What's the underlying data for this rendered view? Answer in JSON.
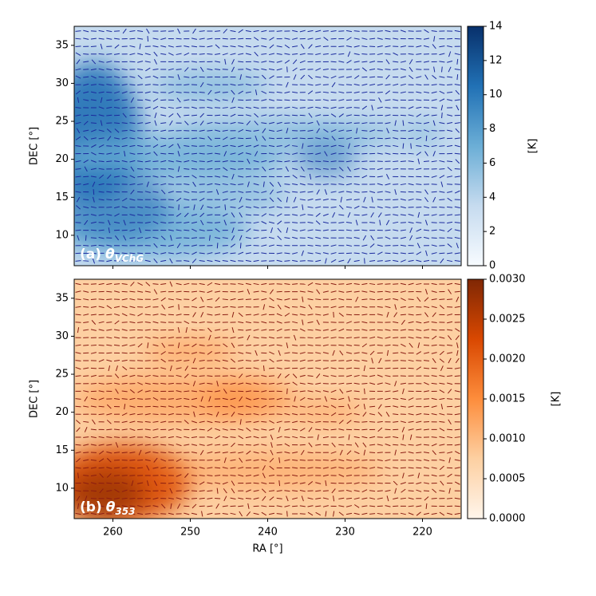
{
  "chart_data": [
    {
      "type": "heatmap",
      "annotation": {
        "label": "(a)",
        "symbol": "θ",
        "subscript": "VChG"
      },
      "ylabel": "DEC [°]",
      "xlim": [
        265,
        215
      ],
      "ylim": [
        6,
        37.5
      ],
      "xticks": [
        260,
        250,
        240,
        230,
        220
      ],
      "yticks": [
        10,
        15,
        20,
        25,
        30,
        35
      ],
      "show_xtick_labels": false,
      "colorbar": {
        "label": "[K]",
        "lim": [
          0,
          14
        ],
        "ticks": [
          0,
          2,
          4,
          6,
          8,
          10,
          12,
          14
        ],
        "colors": [
          "#f7fbff",
          "#c6dbef",
          "#6baed6",
          "#2171b5",
          "#08306b"
        ]
      },
      "vector_color": "#1b2a9e"
    },
    {
      "type": "heatmap",
      "annotation": {
        "label": "(b)",
        "symbol": "θ",
        "subscript": "353"
      },
      "ylabel": "DEC [°]",
      "xlabel": "RA [°]",
      "xlim": [
        265,
        215
      ],
      "ylim": [
        6,
        37.5
      ],
      "xticks": [
        260,
        250,
        240,
        230,
        220
      ],
      "yticks": [
        10,
        15,
        20,
        25,
        30,
        35
      ],
      "show_xtick_labels": true,
      "colorbar": {
        "label": "[K]",
        "lim": [
          0,
          0.003
        ],
        "ticks": [
          {
            "value": 0,
            "label": "0.0000"
          },
          {
            "value": 0.0005,
            "label": "0.0005"
          },
          {
            "value": 0.001,
            "label": "0.0010"
          },
          {
            "value": 0.0015,
            "label": "0.0015"
          },
          {
            "value": 0.002,
            "label": "0.0020"
          },
          {
            "value": 0.0025,
            "label": "0.0025"
          },
          {
            "value": 0.003,
            "label": "0.0030"
          }
        ],
        "colors": [
          "#fff5eb",
          "#fdd0a2",
          "#fd8d3c",
          "#d94801",
          "#7f2704"
        ]
      },
      "vector_color": "#8a1c12"
    }
  ]
}
